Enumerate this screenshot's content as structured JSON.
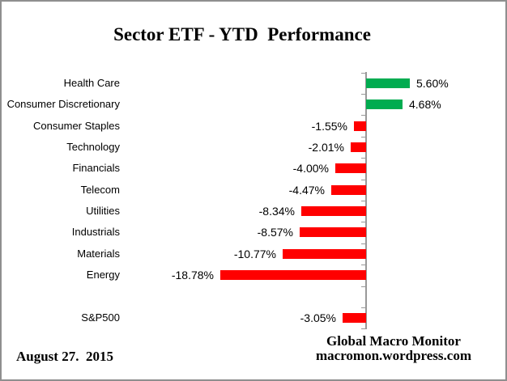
{
  "title": "Sector ETF - YTD  Performance",
  "footer": {
    "date": "August 27.  2015",
    "source_line1": "Global Macro Monitor",
    "source_line2": "macromon.wordpress.com"
  },
  "colors": {
    "positive_bar": "#00AC50",
    "negative_bar": "#FF0000",
    "axis": "#999999",
    "text": "#000000",
    "frame_border": "#8F8F8F",
    "background": "#FFFFFF"
  },
  "chart_data": {
    "type": "bar",
    "orientation": "horizontal",
    "title": "Sector ETF - YTD  Performance",
    "xlabel": "",
    "ylabel": "",
    "xlim": [
      -19.5,
      6.5
    ],
    "grid": false,
    "legend": false,
    "value_unit": "%",
    "categories": [
      "Health Care",
      "Consumer Discretionary",
      "Consumer Staples",
      "Technology",
      "Financials",
      "Telecom",
      "Utilities",
      "Industrials",
      "Materials",
      "Energy",
      "",
      "S&P500"
    ],
    "values": [
      5.6,
      4.68,
      -1.55,
      -2.01,
      -4.0,
      -4.47,
      -8.34,
      -8.57,
      -10.77,
      -18.78,
      null,
      -3.05
    ],
    "value_labels": [
      "5.60%",
      "4.68%",
      "-1.55%",
      "-2.01%",
      "-4.00%",
      "-4.47%",
      "-8.34%",
      "-8.57%",
      "-10.77%",
      "-18.78%",
      "",
      "-3.05%"
    ]
  }
}
